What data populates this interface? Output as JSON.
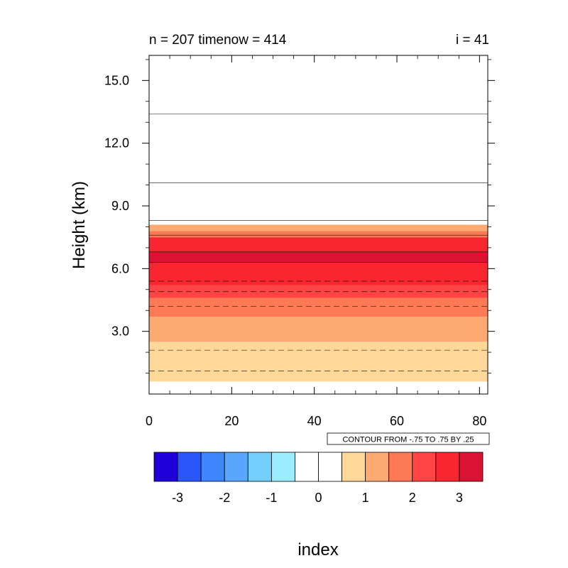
{
  "title_left": "n = 207 timenow = 414",
  "title_right": "i = 41",
  "contour_info": "CONTOUR FROM -.75 TO .75 BY .25",
  "colorbar_label": "index",
  "chart_data": {
    "type": "heatmap",
    "xlabel": "",
    "ylabel": "Height (km)",
    "xlim": [
      0,
      82
    ],
    "ylim": [
      0,
      16.2
    ],
    "x_ticks": [
      0,
      20,
      40,
      60,
      80
    ],
    "x_tick_labels": [
      "0",
      "20",
      "40",
      "60",
      "80"
    ],
    "y_ticks": [
      3,
      6,
      9,
      12,
      15
    ],
    "y_tick_labels": [
      "3.0",
      "6.0",
      "9.0",
      "12.0",
      "15.0"
    ],
    "bands": [
      {
        "y0": 0.6,
        "y1": 1.6,
        "color": "#fed898"
      },
      {
        "y0": 1.6,
        "y1": 2.5,
        "color": "#fed898"
      },
      {
        "y0": 2.5,
        "y1": 3.7,
        "color": "#fdaa72"
      },
      {
        "y0": 3.7,
        "y1": 4.6,
        "color": "#fe7a55"
      },
      {
        "y0": 4.6,
        "y1": 5.2,
        "color": "#fe4444"
      },
      {
        "y0": 5.2,
        "y1": 6.3,
        "color": "#f9262f"
      },
      {
        "y0": 6.3,
        "y1": 6.8,
        "color": "#db1332"
      },
      {
        "y0": 6.8,
        "y1": 7.5,
        "color": "#f9262f"
      },
      {
        "y0": 7.5,
        "y1": 7.8,
        "color": "#fe7a55"
      },
      {
        "y0": 7.8,
        "y1": 8.1,
        "color": "#fdaa72"
      }
    ],
    "contours_solid": [
      6.3,
      6.8,
      7.6,
      8.3,
      10.1,
      13.4
    ],
    "contours_dashed": [
      1.1,
      2.1,
      4.2,
      4.9,
      5.4
    ],
    "colorbar": {
      "colors": [
        "#1f00d8",
        "#2a56fa",
        "#3e86fd",
        "#59a6fd",
        "#74cffd",
        "#9bedfd",
        "#ffffff",
        "#ffffff",
        "#fed898",
        "#fdaa72",
        "#fe7a55",
        "#fe4444",
        "#f9262f",
        "#db1332"
      ],
      "tick_labels": [
        "-3",
        "-2",
        "-1",
        "0",
        "1",
        "2",
        "3"
      ]
    }
  }
}
